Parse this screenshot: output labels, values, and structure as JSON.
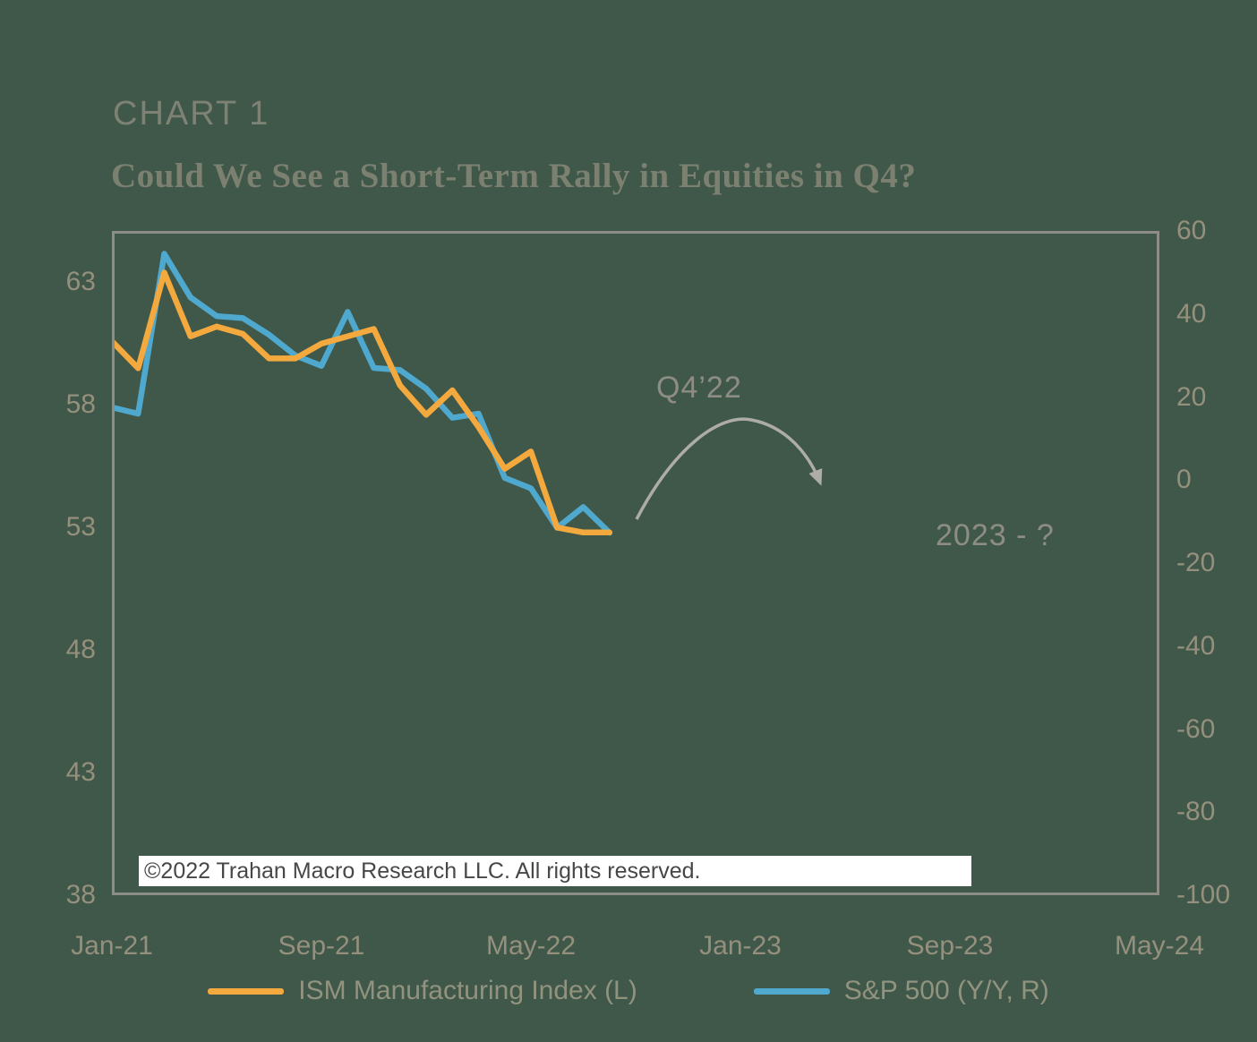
{
  "page": {
    "background": "#405849",
    "chart_label": "CHART 1",
    "title": "Could We See a Short-Term Rally in Equities in Q4?",
    "copyright": "©2022 Trahan Macro Research LLC. All rights reserved."
  },
  "annotations": {
    "q4_label": "Q4’22",
    "future_label": "2023 - ?"
  },
  "legend": [
    {
      "label": "ISM Manufacturing Index (L)",
      "color": "#F4A93E"
    },
    {
      "label": "S&P 500 (Y/Y, R)",
      "color": "#4FA8CE"
    }
  ],
  "chart_data": {
    "type": "line",
    "title": "Could We See a Short-Term Rally in Equities in Q4?",
    "x_tick_labels": [
      "Jan-21",
      "Sep-21",
      "May-22",
      "Jan-23",
      "Sep-23",
      "May-24"
    ],
    "x_tick_months": [
      0,
      8,
      16,
      24,
      32,
      40
    ],
    "x_months_total": 40,
    "left_axis": {
      "label": "ISM Manufacturing Index",
      "ticks": [
        63,
        58,
        53,
        48,
        43,
        38
      ],
      "min": 38,
      "max": 65.1
    },
    "right_axis": {
      "label": "S&P 500 Y/Y %",
      "ticks": [
        60,
        40,
        20,
        0,
        -20,
        -40,
        -60,
        -80,
        -100
      ],
      "min": -100,
      "max": 60
    },
    "months": [
      "Jan-21",
      "Feb-21",
      "Mar-21",
      "Apr-21",
      "May-21",
      "Jun-21",
      "Jul-21",
      "Aug-21",
      "Sep-21",
      "Oct-21",
      "Nov-21",
      "Dec-21",
      "Jan-22",
      "Feb-22",
      "Mar-22",
      "Apr-22",
      "May-22",
      "Jun-22",
      "Jul-22",
      "Aug-22"
    ],
    "series": [
      {
        "id": "ism-line",
        "name": "ISM Manufacturing Index (L)",
        "axis": "left",
        "color": "#F4A93E",
        "start_month": 0,
        "values": [
          60.6,
          59.5,
          63.4,
          60.8,
          61.2,
          60.9,
          59.9,
          59.9,
          60.5,
          60.8,
          61.1,
          58.8,
          57.6,
          58.6,
          57.1,
          55.4,
          56.1,
          53.0,
          52.8,
          52.8
        ]
      },
      {
        "id": "sp500-line",
        "name": "S&P 500 (Y/Y, R)",
        "axis": "right",
        "color": "#4FA8CE",
        "start_month": 0,
        "values": [
          17.5,
          16.0,
          54.5,
          44.0,
          39.5,
          39.0,
          35.0,
          30.0,
          27.5,
          40.5,
          27.0,
          26.5,
          22.0,
          15.0,
          16.0,
          0.5,
          -2.0,
          -11.5,
          -6.5,
          -12.7
        ]
      }
    ]
  }
}
